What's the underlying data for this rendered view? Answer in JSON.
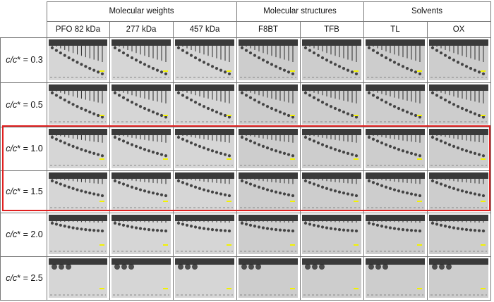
{
  "groups": [
    {
      "label": "Molecular weights",
      "span": 3
    },
    {
      "label": "Molecular structures",
      "span": 2
    },
    {
      "label": "Solvents",
      "span": 2
    }
  ],
  "columns": [
    "PFO 82 kDa",
    "277 kDa",
    "457 kDa",
    "F8BT",
    "TFB",
    "TL",
    "OX"
  ],
  "rows": [
    {
      "prefix": "c/c",
      "suffix": "* = 0.3",
      "value": 0.3,
      "highlighted": false,
      "spread": 0.88,
      "rise": 0.35
    },
    {
      "prefix": "c/c",
      "suffix": "* = 0.5",
      "value": 0.5,
      "highlighted": false,
      "spread": 0.85,
      "rise": 0.45
    },
    {
      "prefix": "c/c",
      "suffix": "* = 1.0",
      "value": 1.0,
      "highlighted": true,
      "spread": 0.72,
      "rise": 0.55
    },
    {
      "prefix": "c/c",
      "suffix": "* = 1.5",
      "value": 1.5,
      "highlighted": true,
      "spread": 0.65,
      "rise": 0.6
    },
    {
      "prefix": "c/c",
      "suffix": "* = 2.0",
      "value": 2.0,
      "highlighted": false,
      "spread": 0.45,
      "rise": 0.7
    },
    {
      "prefix": "c/c",
      "suffix": "* = 2.5",
      "value": 2.5,
      "highlighted": false,
      "spread": 0.0,
      "rise": 0.0
    }
  ],
  "colors": {
    "highlight_border": "#e02020",
    "grid_line": "#7a7a7a",
    "thumb_background": "#d4d4d4",
    "thumb_header": "#3a3a3a",
    "droplet": "#2b2b2b",
    "scale_bar": "#f2f200"
  }
}
